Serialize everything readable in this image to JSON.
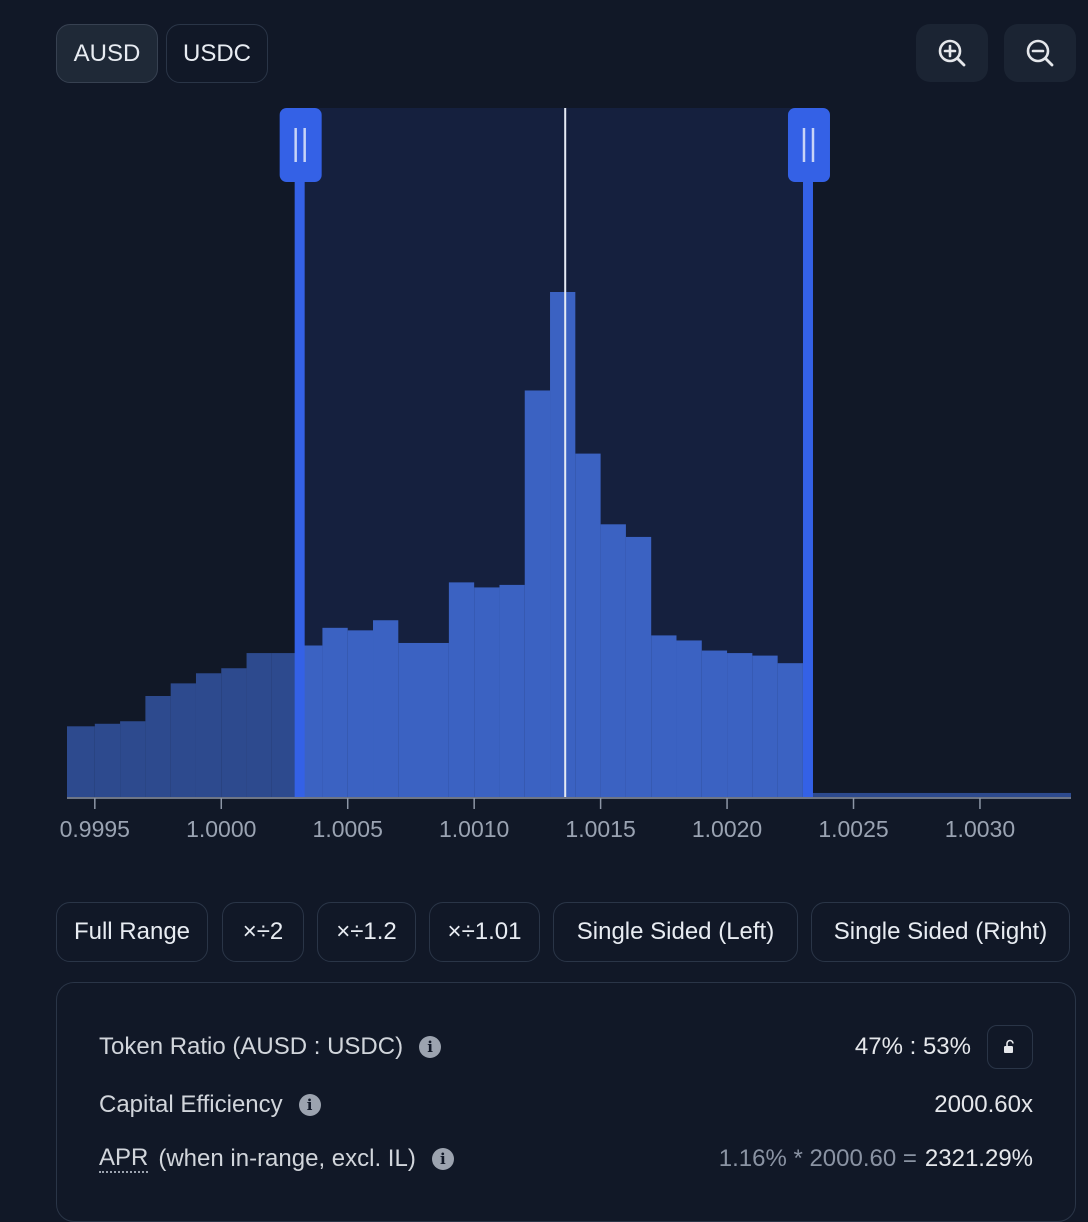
{
  "token_toggle": {
    "tokens": [
      "AUSD",
      "USDC"
    ],
    "selected": "AUSD"
  },
  "zoom": {
    "zoom_in_icon": "zoom-in-icon",
    "zoom_out_icon": "zoom-out-icon"
  },
  "chart_data": {
    "type": "bar",
    "description_kind": "liquidity-distribution-histogram",
    "x_ticks": [
      "0.9995",
      "1.0000",
      "1.0005",
      "1.0010",
      "1.0015",
      "1.0020",
      "1.0025",
      "1.0030"
    ],
    "x_tick_values": [
      0.9995,
      1.0,
      1.0005,
      1.001,
      1.0015,
      1.002,
      1.0025,
      1.003
    ],
    "xlim": [
      0.99939,
      1.00336
    ],
    "ylim": [
      0,
      100
    ],
    "bins": [
      {
        "x0": 0.99939,
        "x1": 0.9995,
        "value": 14.0
      },
      {
        "x0": 0.9995,
        "x1": 0.9996,
        "value": 14.5
      },
      {
        "x0": 0.9996,
        "x1": 0.9997,
        "value": 15.0
      },
      {
        "x0": 0.9997,
        "x1": 0.9998,
        "value": 20.0
      },
      {
        "x0": 0.9998,
        "x1": 0.9999,
        "value": 22.5
      },
      {
        "x0": 0.9999,
        "x1": 1.0,
        "value": 24.5
      },
      {
        "x0": 1.0,
        "x1": 1.0001,
        "value": 25.5
      },
      {
        "x0": 1.0001,
        "x1": 1.0002,
        "value": 28.5
      },
      {
        "x0": 1.0002,
        "x1": 1.00031,
        "value": 28.5
      },
      {
        "x0": 1.00031,
        "x1": 1.0004,
        "value": 30.0
      },
      {
        "x0": 1.0004,
        "x1": 1.0005,
        "value": 33.5
      },
      {
        "x0": 1.0005,
        "x1": 1.0006,
        "value": 33.0
      },
      {
        "x0": 1.0006,
        "x1": 1.0007,
        "value": 35.0
      },
      {
        "x0": 1.0007,
        "x1": 1.0009,
        "value": 30.5
      },
      {
        "x0": 1.0009,
        "x1": 1.001,
        "value": 42.5
      },
      {
        "x0": 1.001,
        "x1": 1.0011,
        "value": 41.5
      },
      {
        "x0": 1.0011,
        "x1": 1.0012,
        "value": 42.0
      },
      {
        "x0": 1.0012,
        "x1": 1.0013,
        "value": 80.5
      },
      {
        "x0": 1.0013,
        "x1": 1.0014,
        "value": 100.0
      },
      {
        "x0": 1.0014,
        "x1": 1.0015,
        "value": 68.0
      },
      {
        "x0": 1.0015,
        "x1": 1.0016,
        "value": 54.0
      },
      {
        "x0": 1.0016,
        "x1": 1.0017,
        "value": 51.5
      },
      {
        "x0": 1.0017,
        "x1": 1.0018,
        "value": 32.0
      },
      {
        "x0": 1.0018,
        "x1": 1.0019,
        "value": 31.0
      },
      {
        "x0": 1.0019,
        "x1": 1.002,
        "value": 29.0
      },
      {
        "x0": 1.002,
        "x1": 1.0021,
        "value": 28.5
      },
      {
        "x0": 1.0021,
        "x1": 1.0022,
        "value": 28.0
      },
      {
        "x0": 1.0022,
        "x1": 1.0023,
        "value": 26.5
      },
      {
        "x0": 1.0023,
        "x1": 1.00336,
        "value": 0.8
      }
    ],
    "range_min": 1.00031,
    "range_max": 1.00232,
    "current_price": 1.00136,
    "colors": {
      "bar_in_range": "#3b62c2",
      "bar_out_range": "#2d4a8e",
      "range_band": "#15203e",
      "handle": "#3461e6",
      "current_line": "#e5eaf4",
      "axis": "#8d96a6",
      "tick_text": "#9aa3b2"
    }
  },
  "range_presets": [
    "Full Range",
    "×÷2",
    "×÷1.2",
    "×÷1.01",
    "Single Sided (Left)",
    "Single Sided (Right)"
  ],
  "stats": {
    "token_ratio_label": "Token Ratio (AUSD : USDC)",
    "token_ratio_value": "47% : 53%",
    "capital_efficiency_label": "Capital Efficiency",
    "capital_efficiency_value": "2000.60x",
    "apr_label_abbr": "APR",
    "apr_label_rest": "(when in-range, excl. IL)",
    "apr_formula": "1.16% * 2000.60 =",
    "apr_value": "2321.29%",
    "info_icon": "info-icon",
    "lock_icon": "unlock-icon"
  },
  "colors": {
    "background": "#111827",
    "accent": "#3461e6"
  }
}
